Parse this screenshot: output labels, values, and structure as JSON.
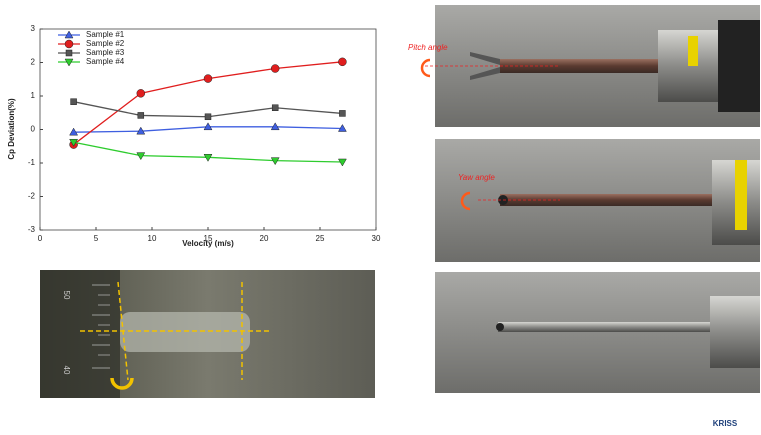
{
  "chart_data": {
    "type": "line",
    "y_label": "Cp Deviation(%)",
    "x_label": "Velocity (m/s)",
    "x": [
      3,
      9,
      15,
      21,
      27
    ],
    "series": [
      {
        "name": "Sample #1",
        "color": "#3f5fe0",
        "marker": "^",
        "values": [
          -0.08,
          -0.05,
          0.08,
          0.08,
          0.03
        ]
      },
      {
        "name": "Sample #2",
        "color": "#e01e1e",
        "marker": "o",
        "values": [
          -0.45,
          1.08,
          1.52,
          1.82,
          2.02
        ]
      },
      {
        "name": "Sample #3",
        "color": "#555555",
        "marker": "s",
        "values": [
          0.83,
          0.42,
          0.38,
          0.65,
          0.48
        ]
      },
      {
        "name": "Sample #4",
        "color": "#2ecc2e",
        "marker": "v",
        "values": [
          -0.38,
          -0.78,
          -0.83,
          -0.93,
          -0.97
        ]
      }
    ],
    "xlim": [
      0,
      30
    ],
    "xticks": [
      0,
      5,
      10,
      15,
      20,
      25,
      30
    ],
    "ylim": [
      -3,
      3
    ],
    "yticks": [
      -3,
      -2,
      -1,
      0,
      1,
      2,
      3
    ],
    "legend": "upper left"
  },
  "photos": {
    "pitch_label": "Pitch angle",
    "yaw_label": "Yaw angle",
    "ruler_top": "50",
    "ruler_bottom": "40",
    "logo": "KRISS"
  }
}
